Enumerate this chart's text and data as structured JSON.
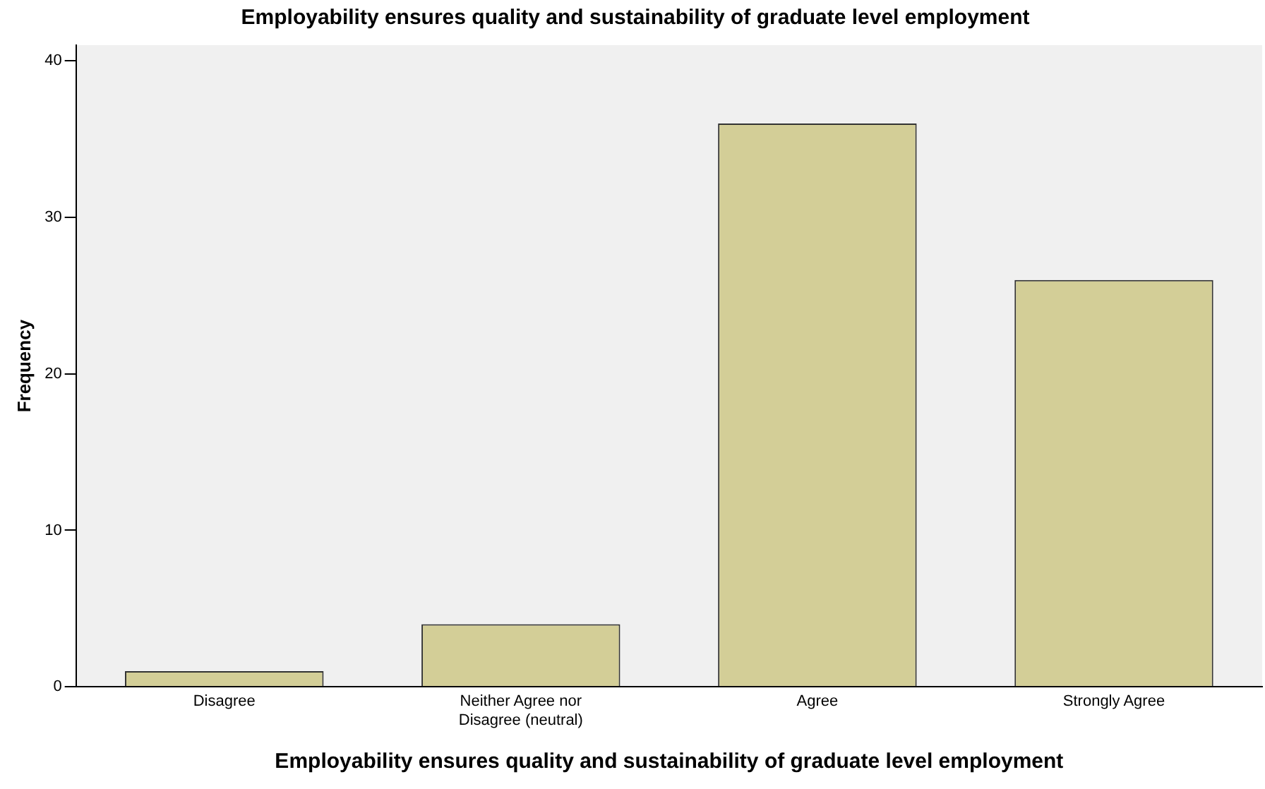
{
  "chart_data": {
    "type": "bar",
    "title": "Employability ensures quality and sustainability of graduate level employment",
    "xlabel": "Employability ensures quality and sustainability of graduate level employment",
    "ylabel": "Frequency",
    "categories": [
      "Disagree",
      "Neither Agree nor Disagree (neutral)",
      "Agree",
      "Strongly Agree"
    ],
    "values": [
      1,
      4,
      36,
      26
    ],
    "color": "#d3ce97",
    "ylim": [
      0,
      41
    ],
    "yticks": [
      0,
      10,
      20,
      30,
      40
    ],
    "grid": false,
    "legend": false
  }
}
